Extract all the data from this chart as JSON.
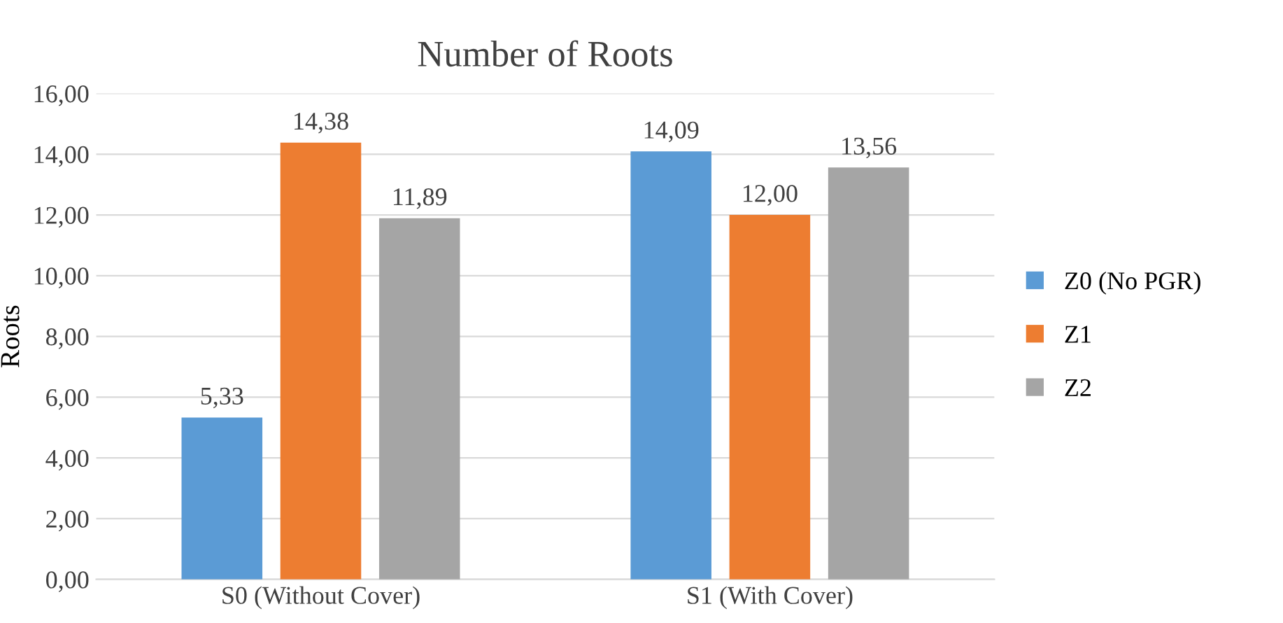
{
  "chart_data": {
    "type": "bar",
    "title": "Number of Roots",
    "ylabel": "Roots",
    "categories": [
      "S0 (Without Cover)",
      "S1 (With Cover)"
    ],
    "series": [
      {
        "name": "Z0 (No PGR)",
        "color": "#5b9bd5",
        "values": [
          5.33,
          14.09
        ],
        "value_labels": [
          "5,33",
          "14,09"
        ]
      },
      {
        "name": "Z1",
        "color": "#ed7d31",
        "values": [
          14.38,
          12.0
        ],
        "value_labels": [
          "14,38",
          "12,00"
        ]
      },
      {
        "name": "Z2",
        "color": "#a5a5a5",
        "values": [
          11.89,
          13.56
        ],
        "value_labels": [
          "11,89",
          "13,56"
        ]
      }
    ],
    "ylim": [
      0,
      16
    ],
    "yticks": [
      {
        "value": 0,
        "label": "0,00"
      },
      {
        "value": 2,
        "label": "2,00"
      },
      {
        "value": 4,
        "label": "4,00"
      },
      {
        "value": 6,
        "label": "6,00"
      },
      {
        "value": 8,
        "label": "8,00"
      },
      {
        "value": 10,
        "label": "10,00"
      },
      {
        "value": 12,
        "label": "12,00"
      },
      {
        "value": 14,
        "label": "14,00"
      },
      {
        "value": 16,
        "label": "16,00"
      }
    ],
    "grid": "y",
    "legend": "right"
  }
}
